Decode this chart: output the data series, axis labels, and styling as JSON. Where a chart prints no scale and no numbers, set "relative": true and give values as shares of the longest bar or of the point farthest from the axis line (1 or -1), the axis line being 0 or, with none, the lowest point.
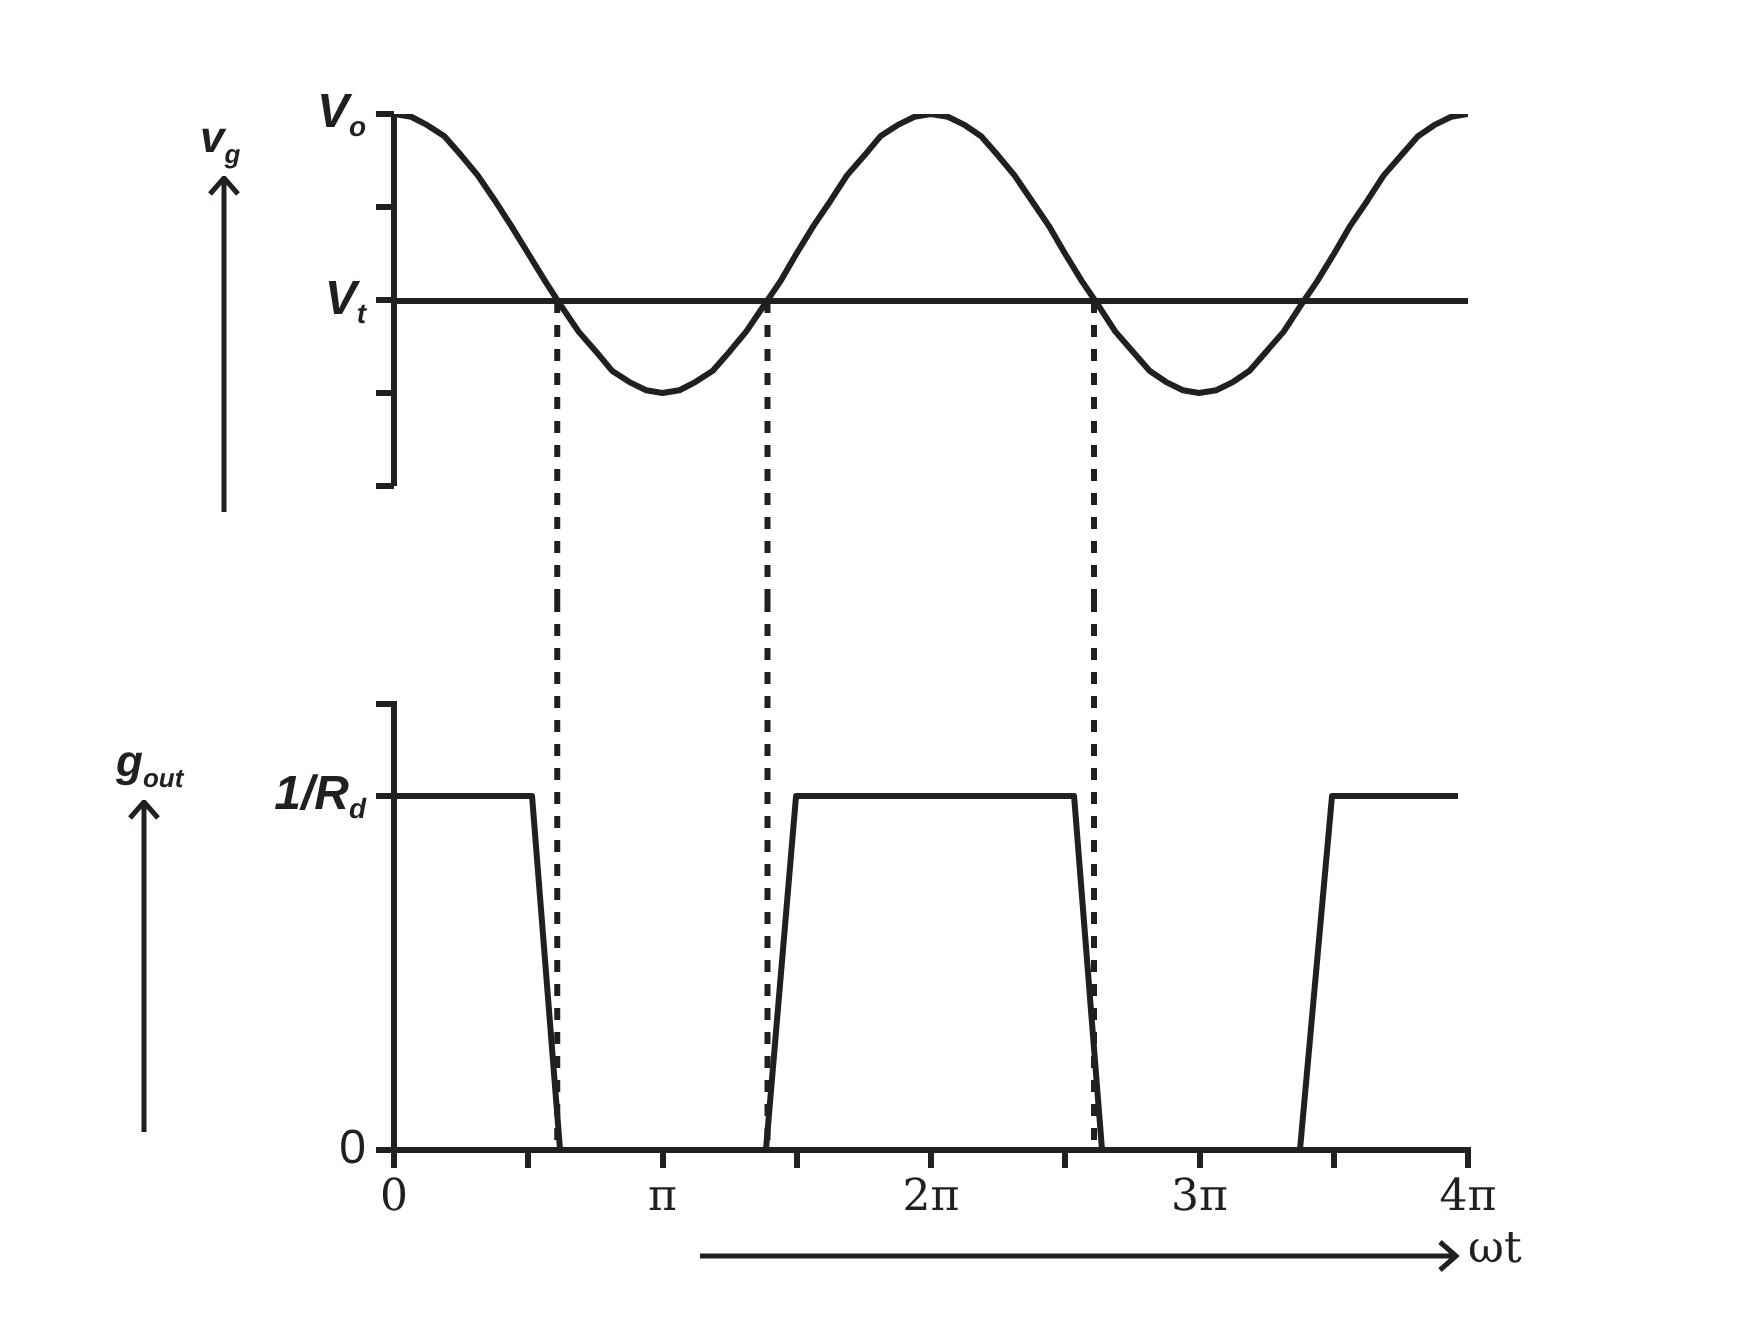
{
  "chart_data": [
    {
      "type": "line",
      "ylabel": "v$_{g}$",
      "relative": true,
      "tick_labels": false,
      "marker": "none",
      "xlim": [
        0,
        12.566
      ],
      "annotations": [
        {
          "text": "V$_{o}$",
          "x": 0,
          "y": 1
        }
      ],
      "x": [
        0,
        0.2,
        0.39,
        0.59,
        0.79,
        0.98,
        1.18,
        1.37,
        1.57,
        1.77,
        1.96,
        2.16,
        2.36,
        2.55,
        2.75,
        2.95,
        3.14,
        3.34,
        3.53,
        3.73,
        3.93,
        4.12,
        4.32,
        4.52,
        4.71,
        4.91,
        5.11,
        5.3,
        5.5,
        5.69,
        5.89,
        6.09,
        6.28,
        6.48,
        6.68,
        6.87,
        7.07,
        7.26,
        7.46,
        7.66,
        7.85,
        8.05,
        8.25,
        8.44,
        8.64,
        8.84,
        9.03,
        9.23,
        9.42,
        9.62,
        9.82,
        10.01,
        10.21,
        10.41,
        10.6,
        10.8,
        11,
        11.19,
        11.39,
        11.58,
        11.78,
        11.98,
        12.17,
        12.37,
        12.566
      ],
      "series": [
        {
          "color": "#231f20",
          "values": [
            1,
            0.99,
            0.96,
            0.92,
            0.85,
            0.78,
            0.69,
            0.6,
            0.5,
            0.4,
            0.31,
            0.22,
            0.15,
            0.08,
            0.04,
            0.01,
            0,
            0.01,
            0.04,
            0.08,
            0.15,
            0.22,
            0.31,
            0.4,
            0.5,
            0.6,
            0.69,
            0.78,
            0.85,
            0.92,
            0.96,
            0.99,
            1,
            0.99,
            0.96,
            0.92,
            0.85,
            0.78,
            0.69,
            0.6,
            0.5,
            0.4,
            0.31,
            0.22,
            0.15,
            0.08,
            0.04,
            0.01,
            0,
            0.01,
            0.04,
            0.08,
            0.15,
            0.22,
            0.31,
            0.4,
            0.5,
            0.6,
            0.69,
            0.78,
            0.85,
            0.92,
            0.96,
            0.99,
            1
          ]
        }
      ],
      "ref_lines": [
        {
          "axis": "y",
          "value": 0.33,
          "label": "V$_{t}$",
          "color": "#231f20",
          "line_style": "solid"
        },
        {
          "axis": "x",
          "value": 1.91,
          "color": "#231f20",
          "line_style": "dashed"
        },
        {
          "axis": "x",
          "value": 4.37,
          "color": "#231f20",
          "line_style": "dashed"
        },
        {
          "axis": "x",
          "value": 8.19,
          "color": "#231f20",
          "line_style": "dashed"
        }
      ]
    },
    {
      "type": "line",
      "ylabel": "g$_{out}$",
      "xlabel": "ωt",
      "marker": "none",
      "xlim": [
        0,
        12.566
      ],
      "ylim": [
        0,
        1.26
      ],
      "yticks": [
        0,
        {
          "value": 1,
          "label": "1/R$_{d}$"
        },
        {
          "value": 1.26,
          "label": null
        }
      ],
      "xticks": [
        0,
        {
          "value": 1.5708,
          "label": null
        },
        {
          "value": 3.1416,
          "label": "π"
        },
        {
          "value": 4.7124,
          "label": null
        },
        {
          "value": 6.2832,
          "label": "2π"
        },
        {
          "value": 7.854,
          "label": null
        },
        {
          "value": 9.4248,
          "label": "3π"
        },
        {
          "value": 10.9956,
          "label": null
        },
        {
          "value": 12.566,
          "label": "4π"
        }
      ],
      "series": [
        {
          "color": "#231f20",
          "x": [
            0,
            1.615,
            1.943,
            4.352,
            4.704,
            7.957,
            8.284,
            10.6,
            10.975,
            12.449
          ],
          "values": [
            1,
            1,
            0,
            0,
            1,
            1,
            0,
            0,
            1,
            1
          ]
        }
      ],
      "ref_lines": [
        {
          "axis": "x",
          "value": 1.91,
          "color": "#231f20",
          "line_style": "dashed"
        },
        {
          "axis": "x",
          "value": 4.37,
          "color": "#231f20",
          "line_style": "dashed"
        },
        {
          "axis": "x",
          "value": 8.19,
          "color": "#231f20",
          "line_style": "dashed"
        }
      ]
    }
  ]
}
